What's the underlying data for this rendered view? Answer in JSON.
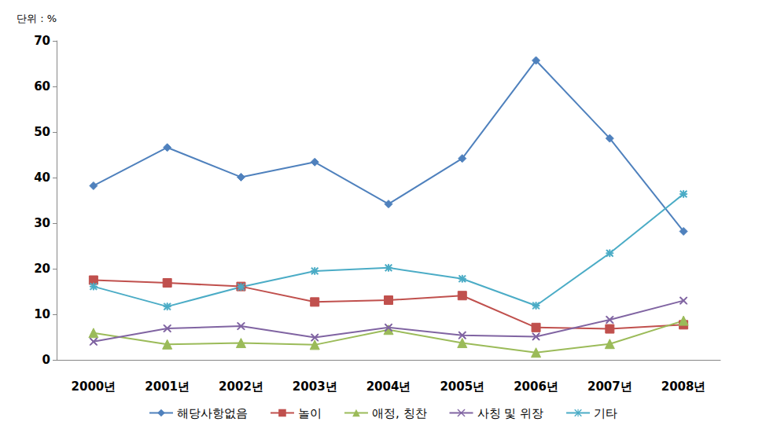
{
  "chart_data": {
    "type": "line",
    "y_label": "단위 : %",
    "categories": [
      "2000년",
      "2001년",
      "2002년",
      "2003년",
      "2004년",
      "2005년",
      "2006년",
      "2007년",
      "2008년"
    ],
    "series": [
      {
        "name": "해당사항없음",
        "color": "#4f81bd",
        "marker": "diamond",
        "values": [
          38.2,
          46.6,
          40.1,
          43.4,
          34.2,
          44.2,
          65.7,
          48.6,
          28.2
        ]
      },
      {
        "name": "놀이",
        "color": "#c0504d",
        "marker": "square",
        "values": [
          17.5,
          16.9,
          16.1,
          12.7,
          13.1,
          14.1,
          7.1,
          6.8,
          7.7
        ]
      },
      {
        "name": "애정, 칭찬",
        "color": "#9bbb59",
        "marker": "triangle",
        "values": [
          5.9,
          3.4,
          3.7,
          3.3,
          6.6,
          3.7,
          1.6,
          3.5,
          8.6
        ]
      },
      {
        "name": "사칭 및 위장",
        "color": "#8064a2",
        "marker": "x",
        "values": [
          4.0,
          6.9,
          7.4,
          4.9,
          7.1,
          5.4,
          5.1,
          8.8,
          13.0
        ]
      },
      {
        "name": "기타",
        "color": "#4bacc6",
        "marker": "asterisk",
        "values": [
          16.1,
          11.7,
          16.0,
          19.5,
          20.2,
          17.8,
          11.9,
          23.4,
          36.4
        ]
      }
    ],
    "ylim": [
      0,
      70
    ],
    "yticks": [
      0,
      10,
      20,
      30,
      40,
      50,
      60,
      70
    ],
    "grid": false,
    "legend": "bottom"
  }
}
